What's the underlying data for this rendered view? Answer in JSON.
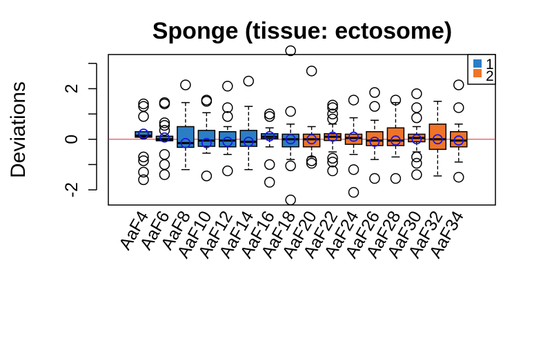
{
  "chart_data": {
    "type": "boxplot",
    "title": "Sponge (tissue: ectosome)",
    "xlabel": "",
    "ylabel": "Deviations",
    "ylim": [
      -2.6,
      3.35
    ],
    "yticks": [
      -2,
      0,
      2
    ],
    "reference_line": {
      "y": 0,
      "color": "#e8202a"
    },
    "colors": {
      "1": "#2b7ec4",
      "2": "#ef7428",
      "mean_marker": "#1a17e8"
    },
    "legend": {
      "position": "top-right",
      "entries": [
        {
          "label": "1",
          "color": "#2b7ec4"
        },
        {
          "label": "2",
          "color": "#ef7428"
        }
      ]
    },
    "categories": [
      "AaF4",
      "AaF6",
      "AaF8",
      "AaF10",
      "AaF12",
      "AaF14",
      "AaF16",
      "AaF18",
      "AaF20",
      "AaF22",
      "AaF24",
      "AaF26",
      "AaF28",
      "AaF30",
      "AaF32",
      "AaF34"
    ],
    "visible_tick_labels": [
      "AaF4",
      "AaF6",
      "AaF8",
      "AaF10",
      "AaF12",
      "AaF14",
      "AaF16",
      "AaF18",
      "AaF20",
      "AaF22",
      "AaF24",
      "AaF26",
      "AaF28",
      "AaF30",
      "AaF32",
      "AaF34"
    ],
    "boxes": [
      {
        "label": "AaF4",
        "group": "1",
        "q1": 0.08,
        "median": 0.14,
        "q3": 0.3,
        "whisker_low": 0.08,
        "whisker_high": 0.3,
        "mean": 0.22,
        "outliers": [
          1.4,
          1.3,
          0.9,
          -0.7,
          -0.85,
          -1.3,
          -1.6,
          0.2
        ]
      },
      {
        "label": "AaF6",
        "group": "1",
        "q1": -0.06,
        "median": 0.0,
        "q3": 0.12,
        "whisker_low": -0.06,
        "whisker_high": 0.12,
        "mean": 0.07,
        "outliers": [
          1.45,
          1.4,
          0.65,
          0.55,
          0.35,
          -0.6,
          -1.0,
          -1.4
        ]
      },
      {
        "label": "AaF8",
        "group": "1",
        "q1": -0.32,
        "median": -0.15,
        "q3": 0.5,
        "whisker_low": -1.2,
        "whisker_high": 1.45,
        "mean": -0.15,
        "outliers": [
          2.15
        ]
      },
      {
        "label": "AaF10",
        "group": "1",
        "q1": -0.28,
        "median": -0.05,
        "q3": 0.35,
        "whisker_low": -0.55,
        "whisker_high": 1.05,
        "mean": -0.15,
        "outliers": [
          1.55,
          1.5,
          -1.45
        ]
      },
      {
        "label": "AaF12",
        "group": "1",
        "q1": -0.3,
        "median": -0.05,
        "q3": 0.3,
        "whisker_low": -0.6,
        "whisker_high": 0.5,
        "mean": -0.1,
        "outliers": [
          2.1,
          1.25,
          0.9,
          -1.25
        ]
      },
      {
        "label": "AaF14",
        "group": "1",
        "q1": -0.28,
        "median": -0.1,
        "q3": 0.35,
        "whisker_low": -1.2,
        "whisker_high": 1.3,
        "mean": -0.1,
        "outliers": [
          2.3
        ]
      },
      {
        "label": "AaF16",
        "group": "1",
        "q1": 0.02,
        "median": 0.1,
        "q3": 0.22,
        "whisker_low": -0.3,
        "whisker_high": 0.45,
        "mean": 0.12,
        "outliers": [
          1.0,
          0.9,
          -1.0,
          -1.7
        ]
      },
      {
        "label": "AaF18",
        "group": "1",
        "q1": -0.3,
        "median": 0.0,
        "q3": 0.2,
        "whisker_low": -0.8,
        "whisker_high": 0.6,
        "mean": 0.0,
        "outliers": [
          3.5,
          1.1,
          -1.05,
          -2.4
        ]
      },
      {
        "label": "AaF20",
        "group": "2",
        "q1": -0.3,
        "median": 0.0,
        "q3": 0.2,
        "whisker_low": -0.7,
        "whisker_high": 0.5,
        "mean": 0.0,
        "outliers": [
          2.7,
          -0.85,
          -0.95
        ]
      },
      {
        "label": "AaF22",
        "group": "2",
        "q1": -0.05,
        "median": 0.1,
        "q3": 0.22,
        "whisker_low": -0.5,
        "whisker_high": 0.6,
        "mean": 0.1,
        "outliers": [
          1.35,
          1.25,
          1.0,
          0.8,
          -0.75,
          -0.9,
          -1.25
        ]
      },
      {
        "label": "AaF24",
        "group": "2",
        "q1": -0.2,
        "median": 0.05,
        "q3": 0.2,
        "whisker_low": -0.6,
        "whisker_high": 0.85,
        "mean": 0.1,
        "outliers": [
          1.55,
          -1.2,
          -2.1
        ]
      },
      {
        "label": "AaF26",
        "group": "2",
        "q1": -0.25,
        "median": -0.05,
        "q3": 0.3,
        "whisker_low": -0.8,
        "whisker_high": 0.75,
        "mean": -0.1,
        "outliers": [
          1.85,
          1.3,
          -1.55
        ]
      },
      {
        "label": "AaF28",
        "group": "2",
        "q1": -0.25,
        "median": -0.05,
        "q3": 0.45,
        "whisker_low": -0.7,
        "whisker_high": 1.45,
        "mean": -0.05,
        "outliers": [
          1.55,
          -1.55
        ]
      },
      {
        "label": "AaF30",
        "group": "2",
        "q1": -0.1,
        "median": 0.05,
        "q3": 0.2,
        "whisker_low": -0.5,
        "whisker_high": 0.5,
        "mean": 0.0,
        "outliers": [
          1.8,
          1.25,
          0.85,
          -0.7,
          -0.95,
          -1.4
        ]
      },
      {
        "label": "AaF32",
        "group": "2",
        "q1": -0.4,
        "median": 0.0,
        "q3": 0.6,
        "whisker_low": -1.45,
        "whisker_high": 1.5,
        "mean": 0.0,
        "outliers": []
      },
      {
        "label": "AaF34",
        "group": "2",
        "q1": -0.3,
        "median": -0.05,
        "q3": 0.3,
        "whisker_low": -0.9,
        "whisker_high": 0.6,
        "mean": -0.05,
        "outliers": [
          2.15,
          1.25,
          -1.5
        ]
      }
    ]
  }
}
